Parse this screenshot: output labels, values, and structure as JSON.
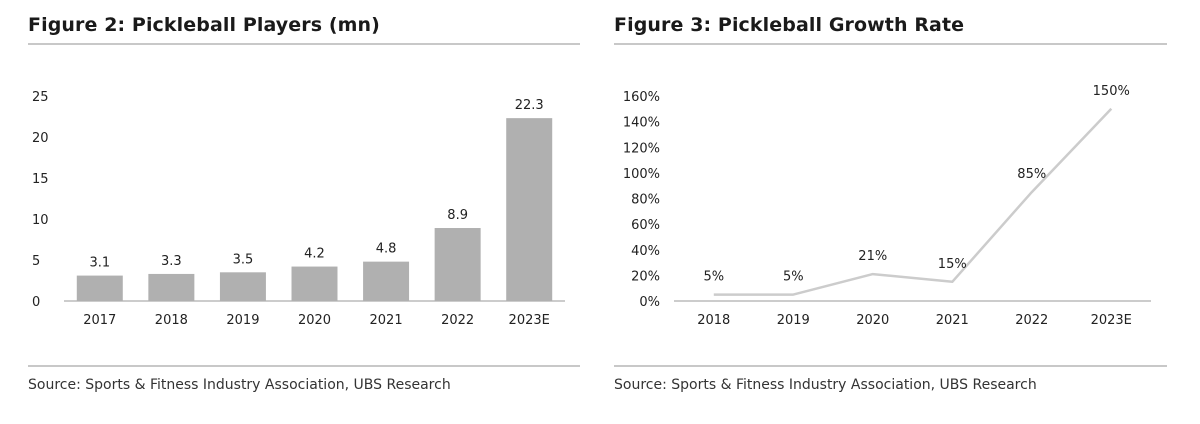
{
  "chart_data": [
    {
      "type": "bar",
      "title": "Figure 2: Pickleball Players (mn)",
      "categories": [
        "2017",
        "2018",
        "2019",
        "2020",
        "2021",
        "2022",
        "2023E"
      ],
      "values": [
        3.1,
        3.3,
        3.5,
        4.2,
        4.8,
        8.9,
        22.3
      ],
      "data_labels": [
        "3.1",
        "3.3",
        "3.5",
        "4.2",
        "4.8",
        "8.9",
        "22.3"
      ],
      "yticks": [
        "0",
        "5",
        "10",
        "15",
        "20",
        "25"
      ],
      "ylim": [
        0,
        25
      ],
      "grid": false,
      "color": "#b0b0b0",
      "source": "Source: Sports & Fitness Industry Association, UBS Research"
    },
    {
      "type": "line",
      "title": "Figure 3: Pickleball Growth Rate",
      "categories": [
        "2018",
        "2019",
        "2020",
        "2021",
        "2022",
        "2023E"
      ],
      "values": [
        5,
        5,
        21,
        15,
        85,
        150
      ],
      "data_labels": [
        "5%",
        "5%",
        "21%",
        "15%",
        "85%",
        "150%"
      ],
      "yticks": [
        "0%",
        "20%",
        "40%",
        "60%",
        "80%",
        "100%",
        "120%",
        "140%",
        "160%"
      ],
      "ylim": [
        0,
        160
      ],
      "grid": false,
      "color": "#cccccc",
      "source": "Source: Sports & Fitness Industry Association, UBS Research"
    }
  ]
}
